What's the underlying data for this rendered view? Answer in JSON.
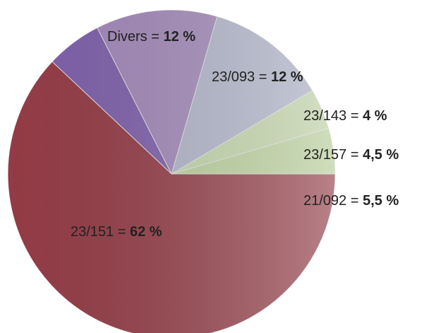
{
  "chart_data": {
    "type": "pie",
    "categories": [
      "23/157",
      "23/143",
      "23/093",
      "Divers",
      "21/092",
      "23/151"
    ],
    "values": [
      4.5,
      4,
      12,
      12,
      5.5,
      62
    ],
    "value_labels": [
      "4,5 %",
      "4 %",
      "12 %",
      "12 %",
      "5,5 %",
      "62 %"
    ],
    "separator": " = ",
    "colors": [
      "#d4eeb0",
      "#dcf3bf",
      "#c9cde6",
      "#b89ad2",
      "#8f6cc2",
      "#a8434f"
    ]
  }
}
